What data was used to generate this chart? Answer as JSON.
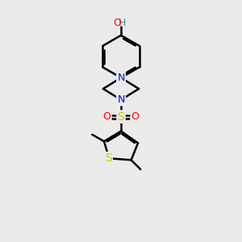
{
  "background_color": "#ebebeb",
  "bond_color": "#000000",
  "nitrogen_color": "#0000ff",
  "oxygen_color": "#ff0000",
  "sulfur_color": "#cccc00",
  "sulfur_s_color": "#cccc00",
  "teal_color": "#4a9090",
  "figsize": [
    3.0,
    3.0
  ],
  "dpi": 100,
  "xlim": [
    0,
    10
  ],
  "ylim": [
    0,
    14
  ]
}
